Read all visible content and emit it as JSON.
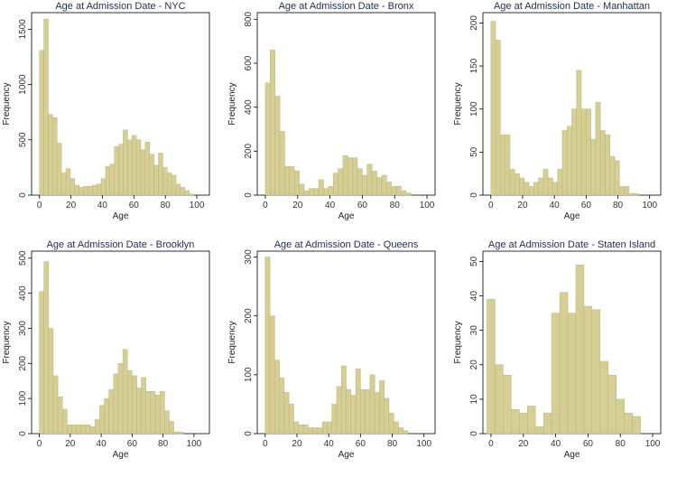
{
  "chart_data": [
    {
      "type": "bar",
      "title": "Age at Admission Date - NYC",
      "xlabel": "Age",
      "ylabel": "Frequency",
      "xlim": [
        -5,
        108
      ],
      "ylim": [
        0,
        1650
      ],
      "xticks": [
        0,
        20,
        40,
        60,
        80,
        100
      ],
      "yticks": [
        0,
        500,
        1000,
        1500
      ],
      "bin_width": 2.8,
      "bin_start": 0,
      "values": [
        1310,
        1590,
        730,
        700,
        470,
        200,
        240,
        150,
        90,
        70,
        80,
        80,
        90,
        100,
        150,
        260,
        280,
        440,
        460,
        590,
        500,
        540,
        500,
        410,
        480,
        370,
        270,
        380,
        250,
        200,
        180,
        100,
        70,
        40,
        10
      ]
    },
    {
      "type": "bar",
      "title": "Age at Admission Date - Bronx",
      "xlabel": "Age",
      "ylabel": "Frequency",
      "xlim": [
        -5,
        105
      ],
      "ylim": [
        0,
        830
      ],
      "xticks": [
        0,
        20,
        40,
        60,
        80,
        100
      ],
      "yticks": [
        0,
        200,
        400,
        600,
        800
      ],
      "bin_width": 3,
      "bin_start": 0,
      "values": [
        510,
        660,
        450,
        290,
        130,
        130,
        110,
        50,
        20,
        30,
        30,
        70,
        30,
        40,
        100,
        120,
        180,
        170,
        170,
        120,
        90,
        140,
        110,
        80,
        90,
        60,
        40,
        40,
        20,
        10
      ]
    },
    {
      "type": "bar",
      "title": "Age at Admission Date - Manhattan",
      "xlabel": "Age",
      "ylabel": "Frequency",
      "xlim": [
        -5,
        107
      ],
      "ylim": [
        0,
        212
      ],
      "xticks": [
        0,
        20,
        40,
        60,
        80,
        100
      ],
      "yticks": [
        0,
        50,
        100,
        150,
        200
      ],
      "bin_width": 3,
      "bin_start": 0,
      "values": [
        202,
        180,
        70,
        70,
        30,
        25,
        20,
        15,
        10,
        15,
        20,
        30,
        20,
        15,
        30,
        75,
        80,
        100,
        145,
        100,
        100,
        65,
        108,
        75,
        70,
        45,
        40,
        10,
        10,
        2,
        2
      ]
    },
    {
      "type": "bar",
      "title": "Age at Admission Date - Brooklyn",
      "xlabel": "Age",
      "ylabel": "Frequency",
      "xlim": [
        -5,
        110
      ],
      "ylim": [
        0,
        520
      ],
      "xticks": [
        0,
        20,
        40,
        60,
        80,
        100
      ],
      "yticks": [
        0,
        100,
        200,
        300,
        400,
        500
      ],
      "bin_width": 3,
      "bin_start": 0,
      "values": [
        405,
        490,
        300,
        165,
        105,
        70,
        25,
        25,
        25,
        25,
        25,
        20,
        40,
        80,
        100,
        125,
        170,
        200,
        240,
        180,
        165,
        130,
        160,
        120,
        120,
        110,
        120,
        65,
        35,
        5,
        5
      ]
    },
    {
      "type": "bar",
      "title": "Age at Admission Date - Queens",
      "xlabel": "Age",
      "ylabel": "Frequency",
      "xlim": [
        -5,
        107
      ],
      "ylim": [
        0,
        310
      ],
      "xticks": [
        0,
        20,
        40,
        60,
        80,
        100
      ],
      "yticks": [
        0,
        100,
        200,
        300
      ],
      "bin_width": 3,
      "bin_start": 0,
      "values": [
        300,
        200,
        125,
        95,
        70,
        50,
        20,
        15,
        15,
        10,
        10,
        10,
        20,
        20,
        50,
        80,
        115,
        75,
        65,
        110,
        75,
        75,
        100,
        70,
        90,
        60,
        35,
        20,
        10,
        5
      ]
    },
    {
      "type": "bar",
      "title": "Age at Admission Date - Staten Island",
      "xlabel": "Age",
      "ylabel": "Frequency",
      "xlim": [
        -5,
        105
      ],
      "ylim": [
        0,
        53
      ],
      "xticks": [
        0,
        20,
        40,
        60,
        80,
        100
      ],
      "yticks": [
        0,
        10,
        20,
        30,
        40,
        50
      ],
      "bin_width": 5,
      "bin_start": -2.5,
      "values": [
        39,
        20,
        17,
        7,
        6,
        8,
        2,
        6,
        35,
        41,
        35,
        49,
        37,
        36,
        21,
        17,
        10,
        6,
        5
      ]
    }
  ]
}
